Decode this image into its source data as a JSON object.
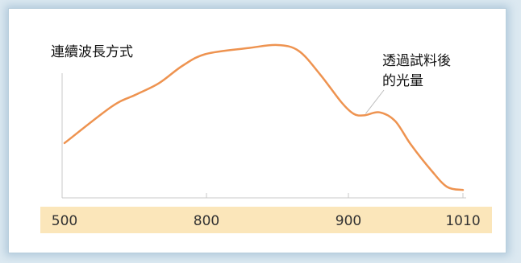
{
  "chart_data": {
    "type": "line",
    "title": "連續波長方式",
    "xlabel": "",
    "ylabel": "",
    "xticks": [
      "500",
      "800",
      "900",
      "1010"
    ],
    "series": [
      {
        "values": [
          {
            "x": 500,
            "y": 0.33
          },
          {
            "x": 600,
            "y": 0.58
          },
          {
            "x": 650,
            "y": 0.66
          },
          {
            "x": 700,
            "y": 0.74
          },
          {
            "x": 750,
            "y": 0.86
          },
          {
            "x": 800,
            "y": 0.94
          },
          {
            "x": 830,
            "y": 0.98
          },
          {
            "x": 850,
            "y": 1.0
          },
          {
            "x": 865,
            "y": 0.96
          },
          {
            "x": 880,
            "y": 0.8
          },
          {
            "x": 895,
            "y": 0.61
          },
          {
            "x": 905,
            "y": 0.53
          },
          {
            "x": 915,
            "y": 0.52
          },
          {
            "x": 930,
            "y": 0.54
          },
          {
            "x": 945,
            "y": 0.48
          },
          {
            "x": 960,
            "y": 0.32
          },
          {
            "x": 980,
            "y": 0.14
          },
          {
            "x": 995,
            "y": 0.03
          },
          {
            "x": 1010,
            "y": 0.01
          }
        ]
      }
    ],
    "annotations": [
      {
        "lines": [
          "透過試料後",
          "的光量"
        ],
        "x": 915,
        "y": 0.52
      }
    ],
    "line_color": "#ee9350",
    "axis_band_color": "#fbe6ba",
    "grid": false
  }
}
